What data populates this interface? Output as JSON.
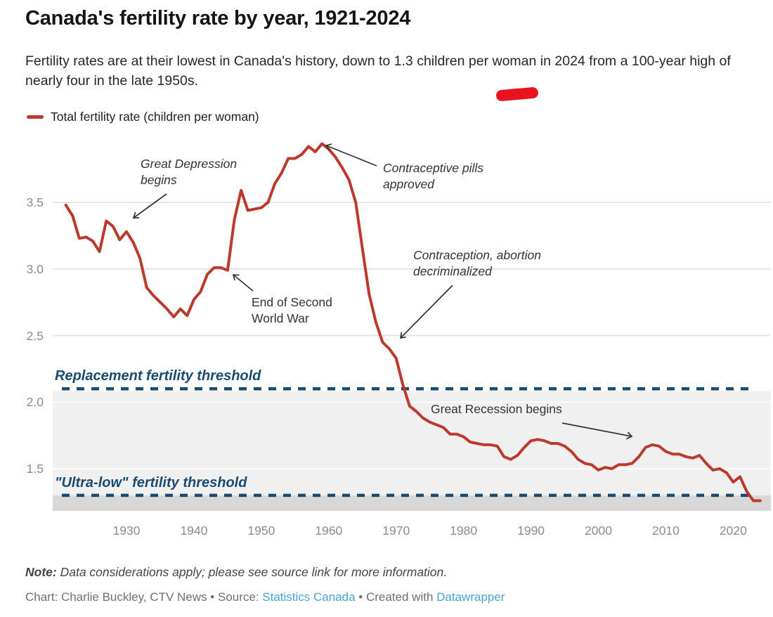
{
  "header": {
    "title": "Canada's fertility rate by year, 1921-2024",
    "subtitle": "Fertility rates are at their lowest in Canada's history, down to 1.3 children per woman in 2024 from a 100-year high of nearly four in the late 1950s.",
    "highlight_marker_color": "#e8131d"
  },
  "legend": {
    "label": "Total fertility rate (children per woman)",
    "swatch_color": "#bb3a2e"
  },
  "chart_data": {
    "type": "line",
    "title": "Canada's fertility rate by year, 1921-2024",
    "series_name": "Total fertility rate (children per woman)",
    "start_year": 1921,
    "end_year": 2024,
    "values": [
      3.48,
      3.4,
      3.23,
      3.24,
      3.21,
      3.13,
      3.36,
      3.32,
      3.22,
      3.28,
      3.2,
      3.08,
      2.86,
      2.8,
      2.75,
      2.7,
      2.64,
      2.7,
      2.65,
      2.77,
      2.83,
      2.96,
      3.01,
      3.01,
      2.99,
      3.37,
      3.59,
      3.44,
      3.45,
      3.46,
      3.5,
      3.64,
      3.72,
      3.83,
      3.83,
      3.86,
      3.92,
      3.88,
      3.94,
      3.9,
      3.84,
      3.76,
      3.67,
      3.5,
      3.15,
      2.81,
      2.6,
      2.45,
      2.4,
      2.33,
      2.13,
      1.97,
      1.93,
      1.88,
      1.85,
      1.83,
      1.81,
      1.76,
      1.76,
      1.74,
      1.7,
      1.69,
      1.68,
      1.68,
      1.67,
      1.59,
      1.57,
      1.6,
      1.66,
      1.71,
      1.72,
      1.71,
      1.69,
      1.69,
      1.67,
      1.63,
      1.57,
      1.54,
      1.53,
      1.49,
      1.51,
      1.5,
      1.53,
      1.53,
      1.54,
      1.59,
      1.66,
      1.68,
      1.67,
      1.63,
      1.61,
      1.61,
      1.59,
      1.58,
      1.6,
      1.54,
      1.49,
      1.5,
      1.47,
      1.4,
      1.44,
      1.33,
      1.26,
      1.26
    ],
    "line_color": "#bb3a2e",
    "grid": true,
    "ylim": [
      1.18,
      3.97
    ],
    "yticks": [
      "3.5",
      "3.0",
      "2.5",
      "2.0",
      "1.5"
    ],
    "ytick_values": [
      3.5,
      3.0,
      2.5,
      2.0,
      1.5
    ],
    "xticks": [
      1930,
      1940,
      1950,
      1960,
      1970,
      1980,
      1990,
      2000,
      2010,
      2020
    ],
    "thresholds": [
      {
        "label": "Replacement fertility threshold",
        "value": 2.1,
        "color": "#1b4a70",
        "style": "dashed"
      },
      {
        "label": "\"Ultra-low\" fertility threshold",
        "value": 1.3,
        "color": "#1b4a70",
        "style": "dashed"
      }
    ],
    "band_light_color": "#f0f0f0",
    "band_dark_color": "#d8d8d8",
    "annotations": [
      {
        "text": "Great Depression\nbegins",
        "italic": true,
        "target_year": 1930,
        "target_value": 3.28
      },
      {
        "text": "Contraceptive pills\napproved",
        "italic": true,
        "target_year": 1960,
        "target_value": 3.9
      },
      {
        "text": "End of Second\nWorld War",
        "italic": false,
        "target_year": 1945,
        "target_value": 3.0
      },
      {
        "text": "Contraception, abortion\ndecriminalized",
        "italic": true,
        "target_year": 1969,
        "target_value": 2.4
      },
      {
        "text": "Great Recession begins",
        "italic": false,
        "target_year": 2008,
        "target_value": 1.68
      }
    ]
  },
  "footer": {
    "note_label": "Note:",
    "note_text": " Data considerations apply; please see source link for more information.",
    "credit_prefix": "Chart: Charlie Buckley, CTV News",
    "separator": " • ",
    "source_label": "Source: ",
    "source_link": "Statistics Canada",
    "created_with": "Created with ",
    "tool_link": "Datawrapper",
    "link_color": "#4ba3d3"
  }
}
